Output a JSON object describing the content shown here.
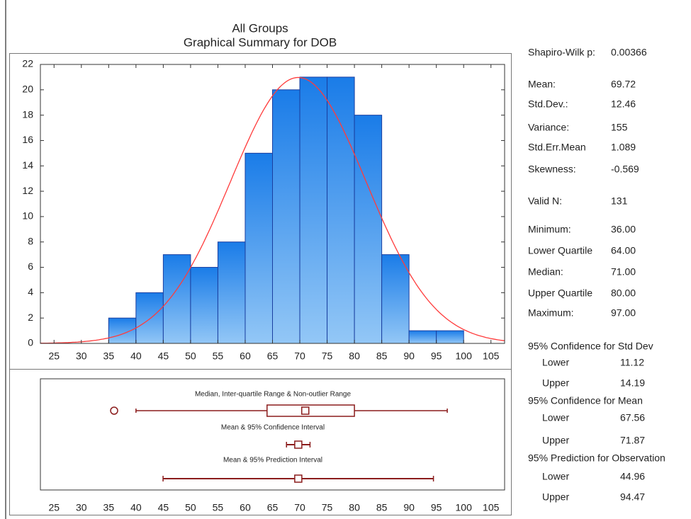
{
  "chart_data": [
    {
      "type": "histogram",
      "title": "All Groups",
      "subtitle": "Graphical Summary for DOB",
      "bins": [
        35,
        40,
        45,
        50,
        55,
        60,
        65,
        70,
        75,
        80,
        85,
        90,
        95,
        100
      ],
      "counts": [
        2,
        4,
        7,
        6,
        8,
        15,
        20,
        21,
        21,
        18,
        7,
        1,
        1
      ],
      "color": "#2583ec",
      "curve_color": "#ff3b3b",
      "xlim": [
        22.5,
        107.5
      ],
      "xticks": [
        25,
        30,
        35,
        40,
        45,
        50,
        55,
        60,
        65,
        70,
        75,
        80,
        85,
        90,
        95,
        100,
        105
      ],
      "ylim": [
        0,
        22
      ],
      "yticks": [
        0,
        2,
        4,
        6,
        8,
        10,
        12,
        14,
        16,
        18,
        20,
        22
      ]
    },
    {
      "type": "box",
      "color": "#8b1c1c",
      "box_label": "Median, Inter-quartile Range & Non-outlier Range",
      "box": {
        "whisker_low": 40,
        "q1": 64,
        "median": 71,
        "q3": 80,
        "whisker_high": 97,
        "outliers": [
          36
        ]
      },
      "ci_label": "Mean & 95% Confidence Interval",
      "ci": {
        "mean": 69.72,
        "low": 67.56,
        "high": 71.87
      },
      "pi_label": "Mean & 95% Prediction Interval",
      "pi": {
        "mean": 69.72,
        "low": 44.96,
        "high": 94.47
      },
      "xlim": [
        22.5,
        107.5
      ],
      "xticks": [
        25,
        30,
        35,
        40,
        45,
        50,
        55,
        60,
        65,
        70,
        75,
        80,
        85,
        90,
        95,
        100,
        105
      ]
    }
  ],
  "summary": {
    "stats": [
      {
        "label": "Shapiro-Wilk p:",
        "value": "0.00366"
      },
      {
        "label": "Mean:",
        "value": "69.72"
      },
      {
        "label": "Std.Dev.:",
        "value": "12.46"
      },
      {
        "label": "Variance:",
        "value": "155"
      },
      {
        "label": "Std.Err.Mean",
        "value": "1.089"
      },
      {
        "label": "Skewness:",
        "value": "-0.569"
      },
      {
        "label": "Valid N:",
        "value": "131"
      },
      {
        "label": "Minimum:",
        "value": "36.00"
      },
      {
        "label": "Lower Quartile",
        "value": "64.00"
      },
      {
        "label": "Median:",
        "value": "71.00"
      },
      {
        "label": "Upper Quartile",
        "value": "80.00"
      },
      {
        "label": "Maximum:",
        "value": "97.00"
      }
    ],
    "intervals": [
      {
        "title": "95% Confidence for Std Dev",
        "rows": [
          {
            "label": "Lower",
            "value": "11.12"
          },
          {
            "label": "Upper",
            "value": "14.19"
          }
        ]
      },
      {
        "title": "95% Confidence for Mean",
        "rows": [
          {
            "label": "Lower",
            "value": "67.56"
          },
          {
            "label": "Upper",
            "value": "71.87"
          }
        ]
      },
      {
        "title": "95% Prediction for Observation",
        "rows": [
          {
            "label": "Lower",
            "value": "44.96"
          },
          {
            "label": "Upper",
            "value": "94.47"
          }
        ]
      }
    ]
  }
}
